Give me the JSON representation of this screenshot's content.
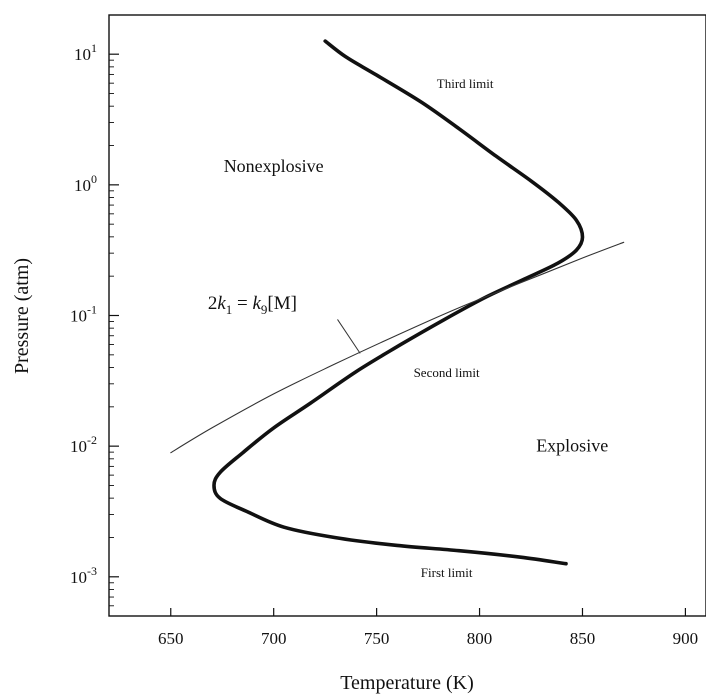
{
  "chart_data": {
    "type": "line",
    "title": "",
    "xlabel": "Temperature (K)",
    "ylabel": "Pressure (atm)",
    "xlim": [
      620,
      910
    ],
    "ylim_log10": [
      -3.3,
      1.3
    ],
    "y_scale": "log",
    "grid": false,
    "x_ticks": [
      {
        "value": 650,
        "label": "650"
      },
      {
        "value": 700,
        "label": "700"
      },
      {
        "value": 750,
        "label": "750"
      },
      {
        "value": 800,
        "label": "800"
      },
      {
        "value": 850,
        "label": "850"
      },
      {
        "value": 900,
        "label": "900"
      }
    ],
    "y_ticks": [
      {
        "exp": 1,
        "base": "10",
        "sup": "1"
      },
      {
        "exp": 0,
        "base": "10",
        "sup": "0"
      },
      {
        "exp": -1,
        "base": "10",
        "sup": "-1"
      },
      {
        "exp": -2,
        "base": "10",
        "sup": "-2"
      },
      {
        "exp": -3,
        "base": "10",
        "sup": "-3"
      }
    ],
    "series": [
      {
        "role": "explosion-limit",
        "color": "#111111",
        "points": [
          [
            842,
            -2.9
          ],
          [
            820,
            -2.85
          ],
          [
            790,
            -2.8
          ],
          [
            760,
            -2.76
          ],
          [
            730,
            -2.7
          ],
          [
            705,
            -2.62
          ],
          [
            687,
            -2.5
          ],
          [
            674,
            -2.4
          ],
          [
            671,
            -2.3
          ],
          [
            674,
            -2.2
          ],
          [
            685,
            -2.05
          ],
          [
            700,
            -1.86
          ],
          [
            718,
            -1.67
          ],
          [
            740,
            -1.43
          ],
          [
            762,
            -1.22
          ],
          [
            783,
            -1.03
          ],
          [
            803,
            -0.86
          ],
          [
            822,
            -0.72
          ],
          [
            838,
            -0.6
          ],
          [
            847,
            -0.5
          ],
          [
            850,
            -0.4
          ],
          [
            847,
            -0.27
          ],
          [
            838,
            -0.13
          ],
          [
            825,
            0.03
          ],
          [
            808,
            0.22
          ],
          [
            790,
            0.43
          ],
          [
            772,
            0.63
          ],
          [
            750,
            0.84
          ],
          [
            735,
            0.98
          ],
          [
            725,
            1.1
          ]
        ]
      },
      {
        "role": "2k1=k9[M]",
        "color": "#333333",
        "points": [
          [
            650,
            -2.05
          ],
          [
            670,
            -1.86
          ],
          [
            700,
            -1.6
          ],
          [
            730,
            -1.37
          ],
          [
            760,
            -1.15
          ],
          [
            790,
            -0.94
          ],
          [
            820,
            -0.75
          ],
          [
            850,
            -0.56
          ],
          [
            870,
            -0.44
          ]
        ]
      }
    ],
    "annotations": [
      {
        "id": "third-limit",
        "text": "Third limit",
        "x": 793,
        "y_log10": 0.74
      },
      {
        "id": "nonexplosive",
        "text": "Nonexplosive",
        "x": 700,
        "y_log10": 0.1
      },
      {
        "id": "second-limit",
        "text": "Second limit",
        "x": 784,
        "y_log10": -1.47
      },
      {
        "id": "explosive",
        "text": "Explosive",
        "x": 845,
        "y_log10": -2.04
      },
      {
        "id": "first-limit",
        "text": "First limit",
        "x": 784,
        "y_log10": -3.0
      }
    ],
    "equation_label": {
      "x": 668,
      "y_log10": -0.95,
      "pre": "2",
      "k1_base": "k",
      "k1_sub": "1",
      "equals": " = ",
      "k9_base": "k",
      "k9_sub": "9",
      "post": "[M]",
      "leader_from": [
        731,
        -1.03
      ],
      "leader_to": [
        742,
        -1.29
      ]
    }
  }
}
